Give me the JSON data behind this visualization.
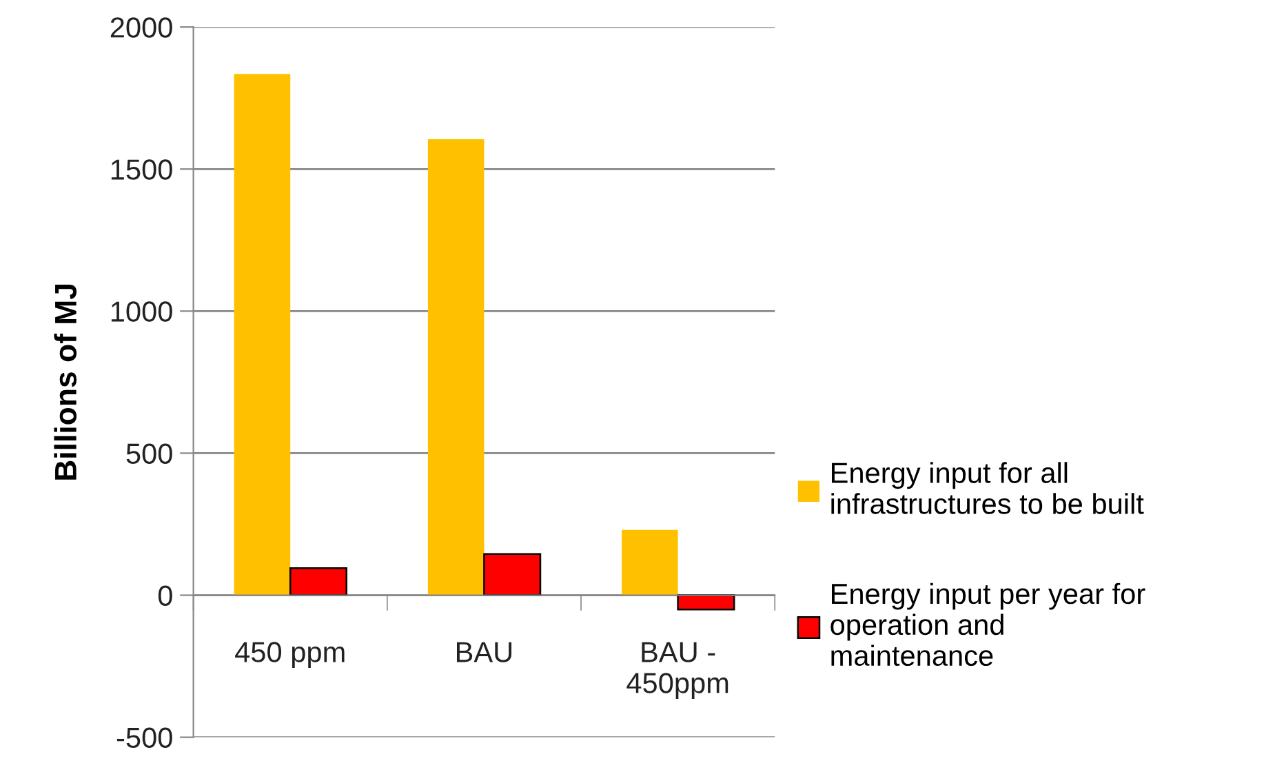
{
  "chart_data": {
    "type": "bar",
    "ylabel": "Billions of MJ",
    "categories": [
      "450 ppm",
      "BAU",
      "BAU -\n450ppm"
    ],
    "series": [
      {
        "name": "Energy input for all\ninfrastructures to be built",
        "color": "#ffc000",
        "values": [
          1835,
          1605,
          230
        ]
      },
      {
        "name": "Energy input per year for\noperation and\nmaintenance",
        "color": "#ff0000",
        "values": [
          95,
          145,
          -50
        ]
      }
    ],
    "ylim": [
      -500,
      2000
    ],
    "yticks": [
      -500,
      0,
      500,
      1000,
      1500,
      2000
    ],
    "grid": "y",
    "legend": "right"
  }
}
